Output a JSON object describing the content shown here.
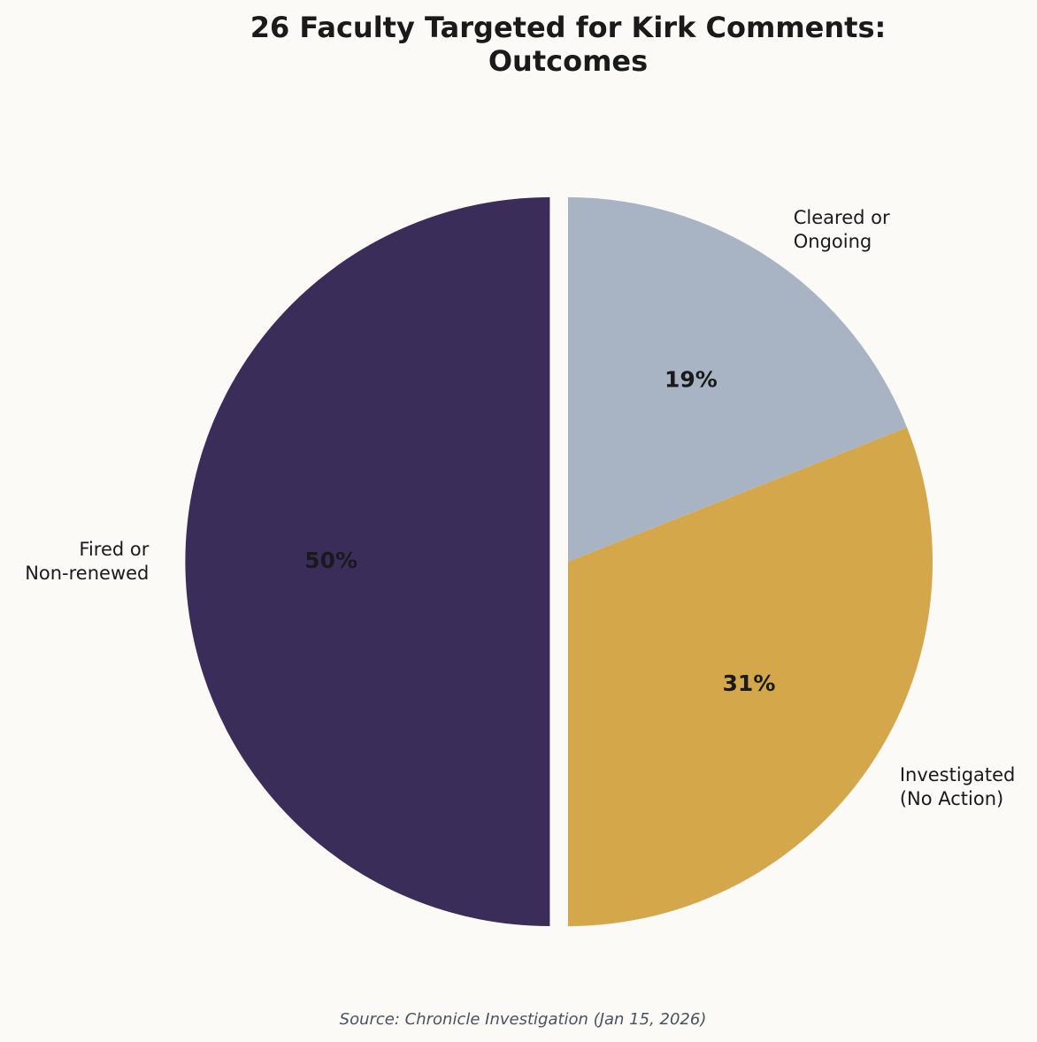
{
  "chart_data": {
    "type": "pie",
    "title": "26 Faculty Targeted for Kirk Comments:\nOutcomes",
    "categories": [
      "Fired or\nNon-renewed",
      "Investigated\n(No Action)",
      "Cleared or\nOngoing"
    ],
    "values": [
      50,
      31,
      19
    ],
    "value_labels": [
      "50%",
      "31%",
      "19%"
    ],
    "colors": [
      "#3b2d5a",
      "#d4a74a",
      "#a8b4c4"
    ],
    "explode": [
      0.05,
      0,
      0
    ],
    "source": "Source: Chronicle Investigation (Jan 15, 2026)"
  }
}
